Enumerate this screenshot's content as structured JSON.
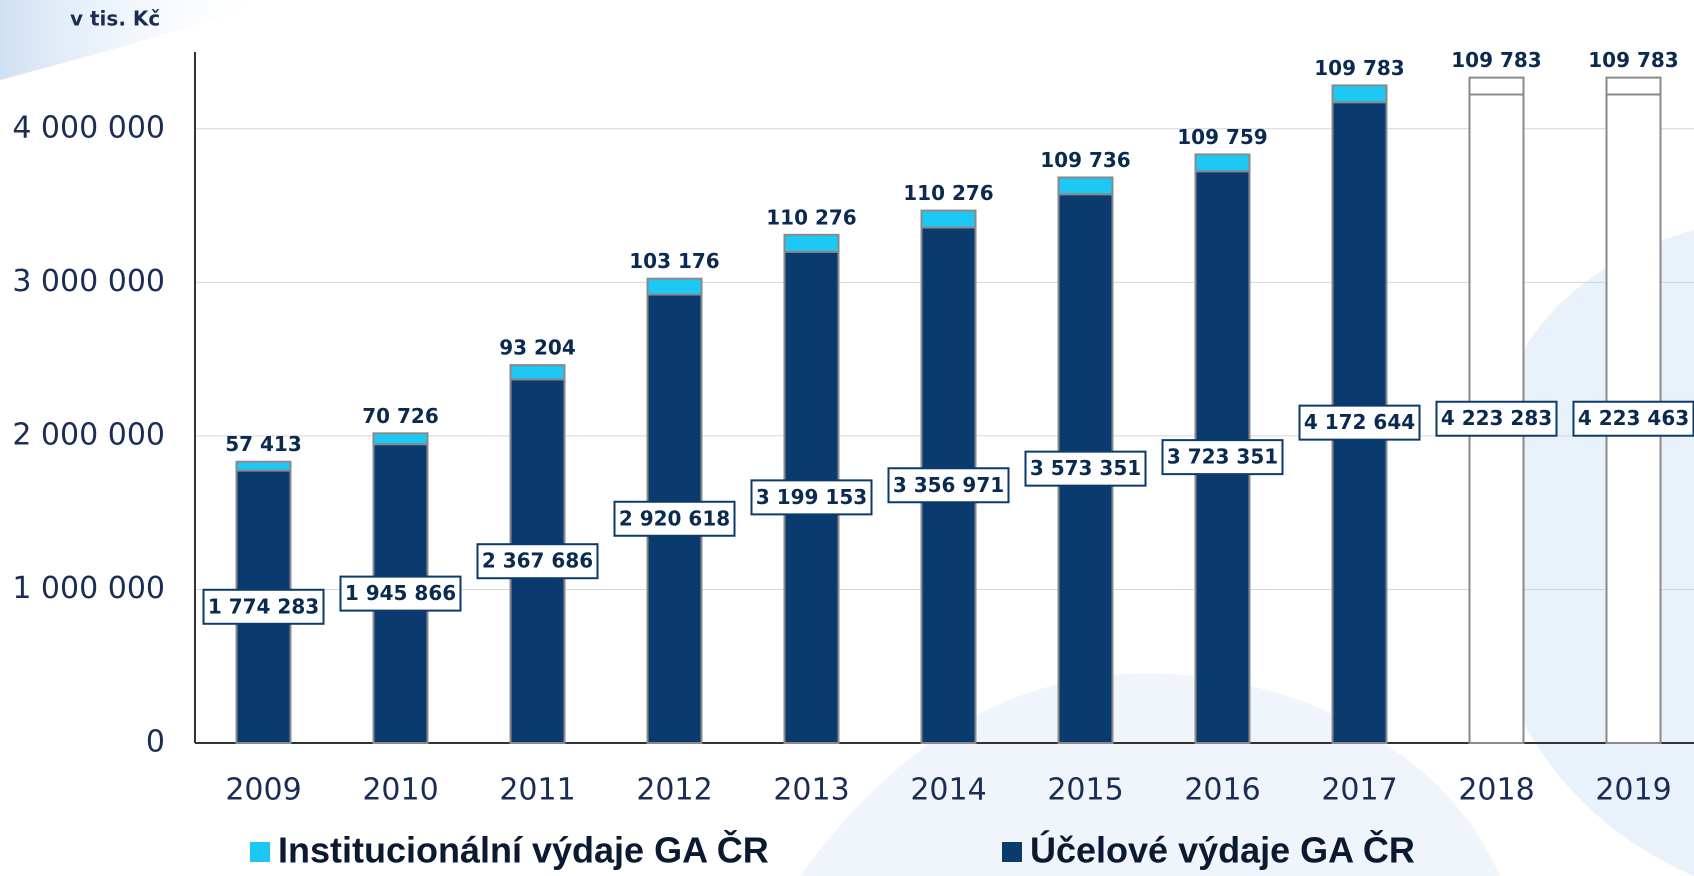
{
  "chart_data": {
    "type": "stacked-bar",
    "y_label": "v tis. Kč",
    "categories": [
      "2009",
      "2010",
      "2011",
      "2012",
      "2013",
      "2014",
      "2015",
      "2016",
      "2017",
      "2018",
      "2019"
    ],
    "series": [
      {
        "name": "Účelové výdaje GA ČR",
        "color": "#0b3a6e",
        "colors": [
          "#0b3a6e",
          "#0b3a6e",
          "#0b3a6e",
          "#0b3a6e",
          "#0b3a6e",
          "#0b3a6e",
          "#0b3a6e",
          "#0b3a6e",
          "#0b3a6e",
          "#ffffff",
          "#ffffff"
        ],
        "values": [
          1774283,
          1945866,
          2367686,
          2920618,
          3199153,
          3356971,
          3573351,
          3723351,
          4172644,
          4223283,
          4223463
        ],
        "value_labels": [
          "1 774 283",
          "1 945 866",
          "2 367 686",
          "2 920 618",
          "3 199 153",
          "3 356 971",
          "3 573 351",
          "3 723 351",
          "4 172 644",
          "4 223 283",
          "4 223 463"
        ]
      },
      {
        "name": "Institucionální výdaje GA ČR",
        "color": "#1ec8f5",
        "colors": [
          "#1ec8f5",
          "#1ec8f5",
          "#1ec8f5",
          "#1ec8f5",
          "#1ec8f5",
          "#1ec8f5",
          "#1ec8f5",
          "#1ec8f5",
          "#1ec8f5",
          "#ffffff",
          "#ffffff"
        ],
        "values": [
          57413,
          70726,
          93204,
          103176,
          110276,
          110276,
          109736,
          109759,
          109783,
          109783,
          109783
        ],
        "value_labels": [
          "57 413",
          "70 726",
          "93 204",
          "103 176",
          "110 276",
          "110 276",
          "109 736",
          "109 759",
          "109 783",
          "109 783",
          "109 783"
        ]
      }
    ],
    "ylim": [
      0,
      4500000
    ],
    "yticks": [
      0,
      {
        "value": 1000000,
        "label": "1 000 000"
      },
      {
        "value": 2000000,
        "label": "2 000 000"
      },
      {
        "value": 3000000,
        "label": "3 000 000"
      },
      {
        "value": 4000000,
        "label": "4 000 000"
      }
    ],
    "grid": true,
    "legend": "bottom"
  }
}
